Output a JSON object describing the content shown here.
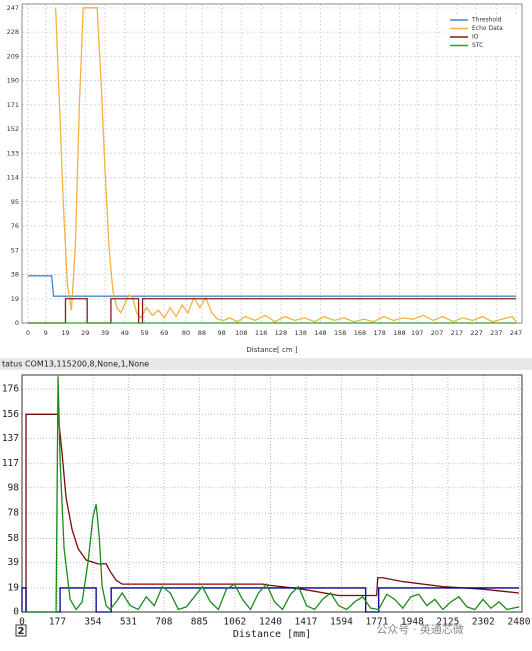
{
  "status_text": "tatus  COM13,115200,8,None,1,None",
  "corner_label": "2",
  "watermark": "公众号 · 英通芯微",
  "chart_data": [
    {
      "type": "line",
      "xlabel": "Distance[ cm ]",
      "legend": "upper right",
      "grid": true,
      "xlim": [
        -3,
        250
      ],
      "ylim": [
        0,
        250
      ],
      "xticks": [
        0,
        9,
        19,
        29,
        39,
        49,
        59,
        69,
        80,
        88,
        98,
        108,
        118,
        128,
        138,
        148,
        158,
        168,
        178,
        188,
        197,
        207,
        217,
        227,
        237,
        247
      ],
      "yticks": [
        0,
        19,
        38,
        57,
        76,
        95,
        114,
        133,
        152,
        171,
        190,
        209,
        228,
        247
      ],
      "series": [
        {
          "name": "Threshold",
          "color": "#4a86c8",
          "x": [
            0,
            12,
            13,
            247
          ],
          "values": [
            37,
            37,
            21,
            21
          ]
        },
        {
          "name": "Echo Data",
          "color": "#f5b041",
          "x": [
            14,
            16,
            18,
            20,
            22,
            24,
            26,
            28,
            35,
            37,
            39,
            41,
            43,
            45,
            47,
            49,
            51,
            53,
            55,
            57,
            60,
            63,
            66,
            69,
            72,
            75,
            78,
            81,
            84,
            87,
            90,
            93,
            96,
            99,
            102,
            106,
            110,
            115,
            120,
            125,
            130,
            135,
            140,
            145,
            150,
            155,
            160,
            165,
            170,
            175,
            180,
            185,
            190,
            195,
            200,
            205,
            210,
            215,
            220,
            225,
            230,
            235,
            240,
            245,
            247
          ],
          "values": [
            247,
            170,
            90,
            30,
            10,
            60,
            170,
            247,
            247,
            190,
            120,
            60,
            25,
            12,
            8,
            15,
            22,
            20,
            8,
            4,
            12,
            6,
            10,
            4,
            12,
            5,
            14,
            8,
            20,
            12,
            20,
            8,
            3,
            2,
            4,
            1,
            5,
            2,
            6,
            1,
            5,
            2,
            4,
            1,
            5,
            2,
            4,
            1,
            3,
            1,
            5,
            2,
            4,
            3,
            6,
            2,
            5,
            1,
            4,
            2,
            5,
            1,
            3,
            5,
            1
          ]
        },
        {
          "name": "IO",
          "color": "#8b1a1a",
          "x": [
            0,
            19,
            19,
            30,
            30,
            42,
            42,
            56,
            56,
            58,
            58,
            247
          ],
          "values": [
            0,
            0,
            19,
            19,
            0,
            0,
            19,
            19,
            0,
            0,
            19,
            19
          ]
        },
        {
          "name": "STC",
          "color": "#2ca02c",
          "x": [
            0,
            247
          ],
          "values": [
            0,
            0
          ]
        }
      ]
    },
    {
      "type": "line",
      "xlabel": "Distance [mm]",
      "grid": true,
      "xlim": [
        0,
        2495
      ],
      "ylim": [
        0,
        187
      ],
      "xticks": [
        0,
        177,
        354,
        531,
        708,
        885,
        1062,
        1240,
        1417,
        1594,
        1771,
        1948,
        2125,
        2302,
        2480
      ],
      "yticks": [
        0,
        19,
        39,
        58,
        78,
        98,
        117,
        137,
        156,
        176
      ],
      "series": [
        {
          "color": "#7a0a0a",
          "x": [
            0,
            20,
            20,
            180,
            200,
            220,
            250,
            280,
            320,
            380,
            420,
            440,
            470,
            500,
            540,
            1200,
            1240,
            1400,
            1580,
            1770,
            1775,
            1800,
            1900,
            2100,
            2300,
            2480
          ],
          "values": [
            0,
            0,
            156,
            156,
            125,
            90,
            65,
            50,
            41,
            38,
            38,
            32,
            25,
            22,
            22,
            22,
            21,
            18,
            13,
            13,
            27,
            27,
            24,
            20,
            18,
            15
          ]
        },
        {
          "color": "#00008b",
          "x": [
            0,
            0,
            20,
            20,
            190,
            190,
            370,
            370,
            445,
            445,
            1715,
            1715,
            1780,
            1780,
            2480
          ],
          "values": [
            0,
            19,
            19,
            0,
            0,
            19,
            19,
            0,
            0,
            19,
            19,
            0,
            0,
            19,
            19
          ]
        },
        {
          "color": "#1a8a1a",
          "x": [
            0,
            170,
            180,
            190,
            210,
            240,
            270,
            300,
            330,
            354,
            370,
            385,
            400,
            420,
            440,
            470,
            500,
            540,
            580,
            620,
            660,
            700,
            740,
            780,
            820,
            860,
            900,
            940,
            980,
            1020,
            1060,
            1100,
            1140,
            1180,
            1220,
            1260,
            1300,
            1340,
            1380,
            1420,
            1460,
            1500,
            1540,
            1580,
            1620,
            1660,
            1700,
            1740,
            1780,
            1820,
            1860,
            1900,
            1940,
            1980,
            2020,
            2060,
            2100,
            2140,
            2180,
            2220,
            2260,
            2300,
            2340,
            2380,
            2420,
            2480
          ],
          "values": [
            0,
            0,
            186,
            120,
            50,
            10,
            2,
            8,
            40,
            75,
            85,
            60,
            20,
            5,
            2,
            8,
            15,
            5,
            2,
            12,
            5,
            20,
            15,
            2,
            4,
            12,
            20,
            8,
            2,
            18,
            22,
            10,
            2,
            15,
            22,
            8,
            2,
            14,
            20,
            5,
            2,
            10,
            15,
            5,
            2,
            8,
            12,
            3,
            2,
            14,
            10,
            3,
            12,
            14,
            5,
            10,
            2,
            8,
            12,
            4,
            2,
            10,
            3,
            8,
            2,
            4
          ]
        }
      ]
    }
  ]
}
